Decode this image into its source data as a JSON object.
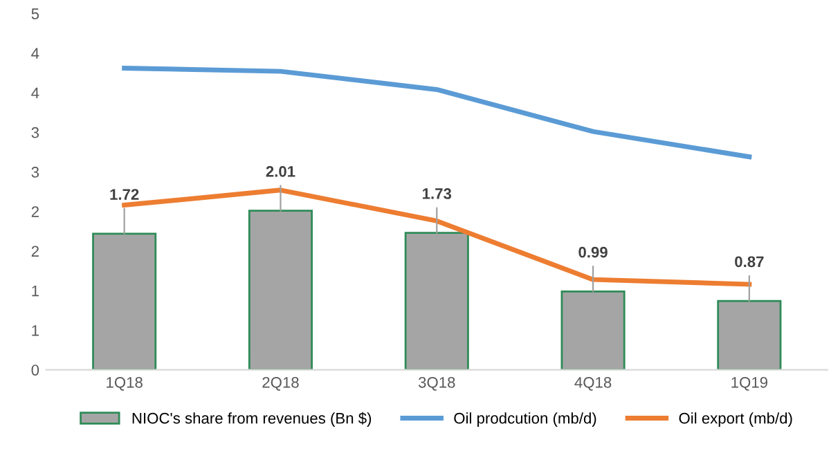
{
  "chart_data": {
    "type": "bar",
    "categories": [
      "1Q18",
      "2Q18",
      "3Q18",
      "4Q18",
      "1Q19"
    ],
    "series": [
      {
        "name": "NIOC's share from revenues (Bn $)",
        "color": "#a5a5a5",
        "values": [
          1.72,
          2.01,
          1.73,
          0.99,
          0.87
        ],
        "value_labels": [
          "1.72",
          "2.01",
          "1.73",
          "0.99",
          "0.87"
        ]
      },
      {
        "name": "Oil prodcution (mb/d)",
        "type": "line",
        "color": "#5b9bd5",
        "values": [
          3.81,
          3.77,
          3.54,
          3.01,
          2.69
        ]
      },
      {
        "name": "Oil export (mb/d)",
        "type": "line",
        "color": "#ed7d31",
        "values": [
          2.08,
          2.27,
          1.88,
          1.14,
          1.08
        ]
      }
    ],
    "ylim": [
      0,
      4.5
    ],
    "yticks": [
      {
        "value": 0,
        "label": "0"
      },
      {
        "value": 0.5,
        "label": "1"
      },
      {
        "value": 1,
        "label": "1"
      },
      {
        "value": 1.5,
        "label": "2"
      },
      {
        "value": 2,
        "label": "2"
      },
      {
        "value": 2.5,
        "label": "3"
      },
      {
        "value": 3,
        "label": "3"
      },
      {
        "value": 3.5,
        "label": "4"
      },
      {
        "value": 4,
        "label": "4"
      },
      {
        "value": 4.5,
        "label": "5"
      }
    ],
    "grid": false,
    "legend": "bottom"
  }
}
